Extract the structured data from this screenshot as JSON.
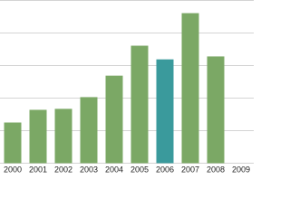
{
  "chart_data": {
    "type": "bar",
    "categories": [
      "2000",
      "2001",
      "2002",
      "2003",
      "2004",
      "2005",
      "2006",
      "2007",
      "2008",
      "2009"
    ],
    "values": [
      1.25,
      1.64,
      1.67,
      2.03,
      2.69,
      3.61,
      3.19,
      4.61,
      3.28,
      null
    ],
    "colors": [
      "#7ba865",
      "#7ba865",
      "#7ba865",
      "#7ba865",
      "#7ba865",
      "#7ba865",
      "#3a9a9c",
      "#7ba865",
      "#7ba865",
      "#7ba865"
    ],
    "ylim": [
      0,
      5
    ],
    "yticks": [
      0,
      1,
      2,
      3,
      4,
      5
    ],
    "grid": true
  }
}
